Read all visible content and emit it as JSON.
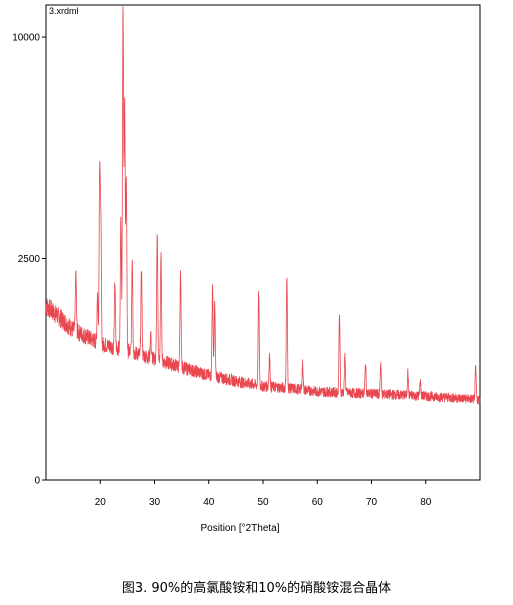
{
  "chart_data": {
    "type": "line",
    "file_label": "3.xrdml",
    "xlabel": "Position [°2Theta]",
    "ylabel": "",
    "xlim": [
      10,
      90
    ],
    "ylim": [
      0,
      11500
    ],
    "y_scale": "sqrt",
    "x_ticks": [
      20,
      30,
      40,
      50,
      60,
      70,
      80
    ],
    "y_ticks": [
      0,
      2500,
      10000
    ],
    "grid": false,
    "series": [
      {
        "color": "#e8474f",
        "background": [
          [
            10,
            1550
          ],
          [
            15,
            1150
          ],
          [
            20,
            950
          ],
          [
            25,
            850
          ],
          [
            30,
            750
          ],
          [
            35,
            650
          ],
          [
            40,
            560
          ],
          [
            45,
            500
          ],
          [
            50,
            450
          ],
          [
            55,
            430
          ],
          [
            60,
            400
          ],
          [
            70,
            380
          ],
          [
            80,
            360
          ],
          [
            90,
            330
          ]
        ],
        "peaks": [
          {
            "x": 15.5,
            "y": 2200
          },
          {
            "x": 19.5,
            "y": 1800
          },
          {
            "x": 19.9,
            "y": 5000
          },
          {
            "x": 20.1,
            "y": 3600
          },
          {
            "x": 22.7,
            "y": 2000
          },
          {
            "x": 23.8,
            "y": 3500
          },
          {
            "x": 24.2,
            "y": 11500
          },
          {
            "x": 24.5,
            "y": 7400
          },
          {
            "x": 24.8,
            "y": 4600
          },
          {
            "x": 25.9,
            "y": 2500
          },
          {
            "x": 27.6,
            "y": 2300
          },
          {
            "x": 29.3,
            "y": 1100
          },
          {
            "x": 30.5,
            "y": 3100
          },
          {
            "x": 31.2,
            "y": 2600
          },
          {
            "x": 34.8,
            "y": 2200
          },
          {
            "x": 40.7,
            "y": 1900
          },
          {
            "x": 41.1,
            "y": 1600
          },
          {
            "x": 49.2,
            "y": 1800
          },
          {
            "x": 51.2,
            "y": 800
          },
          {
            "x": 54.4,
            "y": 2100
          },
          {
            "x": 57.3,
            "y": 700
          },
          {
            "x": 64.1,
            "y": 1400
          },
          {
            "x": 65.1,
            "y": 800
          },
          {
            "x": 68.9,
            "y": 700
          },
          {
            "x": 71.7,
            "y": 700
          },
          {
            "x": 76.7,
            "y": 600
          },
          {
            "x": 79.0,
            "y": 500
          },
          {
            "x": 89.2,
            "y": 650
          }
        ]
      }
    ]
  },
  "caption": "图3. 90%的高氯酸铵和10%的硝酸铵混合晶体"
}
